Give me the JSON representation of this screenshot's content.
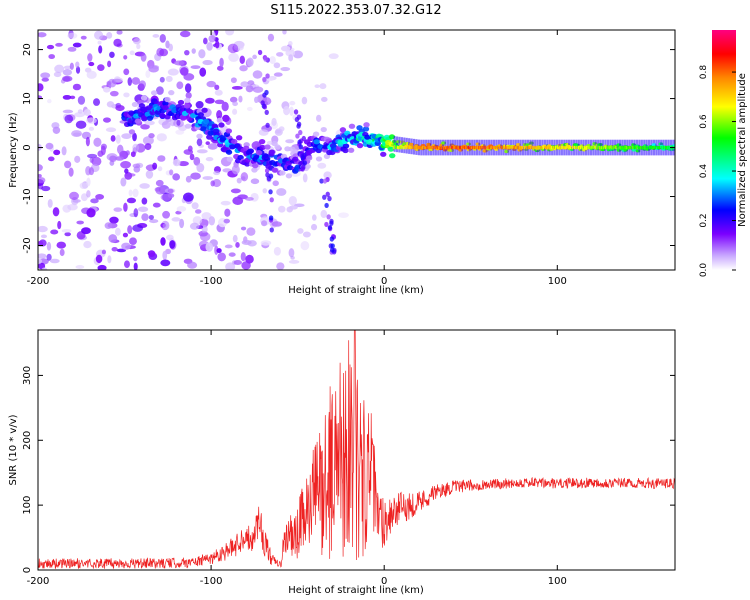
{
  "figure_title": "S115.2022.353.07.32.G12",
  "chart_data": [
    {
      "type": "heatmap",
      "xlabel": "Height of straight line (km)",
      "ylabel": "Frequency (Hz)",
      "xlim": [
        -200,
        168
      ],
      "ylim": [
        -25,
        24
      ],
      "x_ticks": [
        -200,
        -100,
        0,
        100
      ],
      "y_ticks": [
        -20,
        -10,
        0,
        10,
        20
      ],
      "colorbar": {
        "label": "Normalized spectral amplitude",
        "range": [
          0.0,
          0.97
        ],
        "ticks": [
          0.0,
          0.2,
          0.4,
          0.6,
          0.8
        ],
        "tick_labels": [
          "0.0",
          "0.2",
          "0.4",
          "0.6",
          "0.8"
        ],
        "colormap": [
          "#ffffff",
          "#c9a8ff",
          "#7b00ff",
          "#0000ff",
          "#00ffff",
          "#00ff00",
          "#ffff00",
          "#ff8800",
          "#ff0000",
          "#ff0080"
        ]
      },
      "ridge": {
        "x": [
          -145,
          -130,
          -120,
          -110,
          -100,
          -90,
          -80,
          -70,
          -60,
          -50,
          -40,
          -30,
          -20,
          -10,
          0,
          20,
          50,
          100,
          168
        ],
        "freq": [
          6,
          8,
          8,
          6,
          4,
          1,
          -2,
          -2,
          -3,
          -4,
          1,
          0,
          2,
          2,
          1,
          0,
          0,
          0,
          0
        ],
        "amplitude": [
          0.3,
          0.35,
          0.3,
          0.35,
          0.4,
          0.35,
          0.3,
          0.35,
          0.3,
          0.3,
          0.3,
          0.35,
          0.4,
          0.45,
          0.55,
          0.8,
          0.85,
          0.7,
          0.5
        ]
      },
      "grid": false
    },
    {
      "type": "line",
      "xlabel": "Height of straight line (km)",
      "ylabel": "SNR (10 * v/v)",
      "xlim": [
        -200,
        168
      ],
      "ylim": [
        0,
        370
      ],
      "x_ticks": [
        -200,
        -100,
        0,
        100
      ],
      "y_ticks": [
        0,
        100,
        200,
        300
      ],
      "color": "#ee2222",
      "envelope": {
        "x": [
          -200,
          -130,
          -110,
          -100,
          -95,
          -90,
          -85,
          -80,
          -77,
          -72,
          -70,
          -65,
          -60,
          -56,
          -52,
          -48,
          -44,
          -40,
          -36,
          -32,
          -28,
          -24,
          -20,
          -16,
          -12,
          -8,
          -4,
          0,
          5,
          10,
          20,
          30,
          40,
          60,
          80,
          100,
          120,
          140,
          168
        ],
        "y": [
          10,
          10,
          12,
          18,
          25,
          30,
          40,
          55,
          45,
          80,
          50,
          15,
          8,
          60,
          40,
          75,
          90,
          120,
          130,
          145,
          170,
          190,
          200,
          160,
          140,
          170,
          80,
          75,
          90,
          95,
          105,
          120,
          128,
          132,
          135,
          133,
          135,
          134,
          133
        ],
        "spread": [
          8,
          8,
          8,
          10,
          12,
          15,
          18,
          20,
          20,
          30,
          25,
          10,
          6,
          40,
          40,
          50,
          60,
          80,
          110,
          130,
          150,
          170,
          170,
          150,
          130,
          90,
          60,
          40,
          30,
          25,
          18,
          12,
          10,
          8,
          8,
          8,
          8,
          8,
          8
        ],
        "peak_max": 370
      },
      "grid": false
    }
  ]
}
